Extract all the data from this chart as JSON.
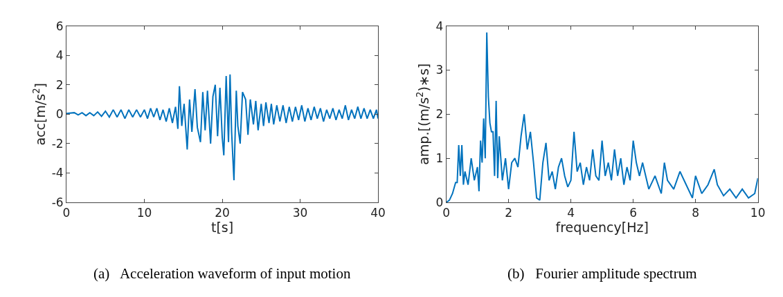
{
  "chart_data": [
    {
      "type": "line",
      "title": "(a)   Acceleration waveform of input motion",
      "xlabel": "t[s]",
      "ylabel": "acc[m/s$^{2}$]",
      "xlim": [
        0,
        40
      ],
      "ylim": [
        -6,
        6
      ],
      "xticks": [
        0,
        10,
        20,
        30,
        40
      ],
      "yticks": [
        -6,
        -4,
        -2,
        0,
        2,
        4,
        6
      ],
      "legend": false,
      "marker": "none",
      "line_style": "solid",
      "series": [
        {
          "color": "#0072bd",
          "x": [
            0,
            1,
            1.5,
            2,
            2.5,
            3,
            3.5,
            4,
            4.5,
            5,
            5.5,
            6,
            6.5,
            7,
            7.5,
            8,
            8.5,
            9,
            9.5,
            10,
            10.4,
            10.8,
            11.2,
            11.6,
            12,
            12.4,
            12.8,
            13.2,
            13.6,
            14,
            14.3,
            14.5,
            14.8,
            15.1,
            15.5,
            15.8,
            16.1,
            16.5,
            16.8,
            17.2,
            17.5,
            17.8,
            18.1,
            18.5,
            18.8,
            19.1,
            19.4,
            19.7,
            20,
            20.2,
            20.5,
            20.8,
            21,
            21.2,
            21.5,
            21.8,
            22,
            22.3,
            22.6,
            23,
            23.3,
            23.6,
            24,
            24.3,
            24.6,
            25,
            25.3,
            25.6,
            26,
            26.3,
            26.6,
            27,
            27.4,
            27.8,
            28.2,
            28.6,
            29,
            29.4,
            29.8,
            30.2,
            30.6,
            31,
            31.4,
            31.8,
            32.2,
            32.6,
            33,
            33.4,
            33.8,
            34.2,
            34.6,
            35,
            35.4,
            35.8,
            36.2,
            36.6,
            37,
            37.4,
            37.8,
            38.2,
            38.6,
            39,
            39.4,
            39.8,
            40
          ],
          "values": [
            0.05,
            0.1,
            -0.05,
            0.1,
            -0.1,
            0.1,
            -0.1,
            0.15,
            -0.15,
            0.2,
            -0.2,
            0.3,
            -0.2,
            0.3,
            -0.3,
            0.3,
            -0.2,
            0.3,
            -0.2,
            0.3,
            -0.3,
            0.4,
            -0.2,
            0.4,
            -0.4,
            0.3,
            -0.5,
            0.4,
            -0.6,
            0.5,
            -1.0,
            1.9,
            -0.8,
            0.7,
            -2.4,
            1.0,
            -1.2,
            1.7,
            -0.9,
            -1.9,
            1.5,
            -1.1,
            1.6,
            -2.0,
            1.2,
            2.0,
            -1.5,
            1.8,
            -1.6,
            -2.8,
            2.6,
            -1.9,
            2.7,
            -1.2,
            -4.5,
            1.6,
            -0.8,
            -2.0,
            1.5,
            1.0,
            -1.4,
            1.0,
            -0.7,
            0.9,
            -1.1,
            0.7,
            -0.8,
            0.8,
            -0.6,
            0.7,
            -0.7,
            0.6,
            -0.5,
            0.6,
            -0.6,
            0.5,
            -0.5,
            0.5,
            -0.4,
            0.6,
            -0.5,
            0.4,
            -0.4,
            0.5,
            -0.3,
            0.4,
            -0.5,
            0.3,
            -0.3,
            0.4,
            -0.4,
            0.3,
            -0.3,
            0.6,
            -0.4,
            0.3,
            -0.3,
            0.5,
            -0.3,
            0.4,
            -0.3,
            0.3,
            -0.3,
            0.3,
            -0.3
          ]
        }
      ]
    },
    {
      "type": "line",
      "title": "(b)   Fourier amplitude spectrum",
      "xlabel": "frequency[Hz]",
      "ylabel": "amp.[(m/s$^{2}$)∗s]",
      "xlim": [
        0,
        10
      ],
      "ylim": [
        0,
        4
      ],
      "xticks": [
        0,
        2,
        4,
        6,
        8,
        10
      ],
      "yticks": [
        0,
        1,
        2,
        3,
        4
      ],
      "legend": false,
      "marker": "none",
      "line_style": "solid",
      "series": [
        {
          "color": "#0072bd",
          "x": [
            0,
            0.1,
            0.2,
            0.3,
            0.35,
            0.4,
            0.45,
            0.5,
            0.55,
            0.6,
            0.7,
            0.8,
            0.9,
            1.0,
            1.05,
            1.1,
            1.15,
            1.2,
            1.25,
            1.3,
            1.35,
            1.4,
            1.45,
            1.5,
            1.55,
            1.6,
            1.65,
            1.7,
            1.8,
            1.9,
            2.0,
            2.1,
            2.2,
            2.3,
            2.4,
            2.5,
            2.6,
            2.7,
            2.8,
            2.9,
            3.0,
            3.1,
            3.2,
            3.3,
            3.4,
            3.5,
            3.6,
            3.7,
            3.8,
            3.9,
            4.0,
            4.1,
            4.2,
            4.3,
            4.4,
            4.5,
            4.6,
            4.7,
            4.8,
            4.9,
            5.0,
            5.1,
            5.2,
            5.3,
            5.4,
            5.5,
            5.6,
            5.7,
            5.8,
            5.9,
            6.0,
            6.1,
            6.2,
            6.3,
            6.5,
            6.7,
            6.9,
            7.0,
            7.1,
            7.3,
            7.5,
            7.7,
            7.9,
            8.0,
            8.2,
            8.4,
            8.6,
            8.7,
            8.9,
            9.1,
            9.3,
            9.5,
            9.7,
            9.9,
            10
          ],
          "values": [
            0,
            0.05,
            0.2,
            0.45,
            0.45,
            1.3,
            0.6,
            1.3,
            0.4,
            0.7,
            0.4,
            1.0,
            0.5,
            0.8,
            0.25,
            1.4,
            0.9,
            1.9,
            1.0,
            3.85,
            2.4,
            1.8,
            1.6,
            1.6,
            0.6,
            2.3,
            0.55,
            1.5,
            0.5,
            1.0,
            0.3,
            0.9,
            1.0,
            0.8,
            1.5,
            2.0,
            1.2,
            1.6,
            0.9,
            0.1,
            0.05,
            0.9,
            1.35,
            0.5,
            0.7,
            0.3,
            0.8,
            1.0,
            0.6,
            0.35,
            0.5,
            1.6,
            0.7,
            0.9,
            0.4,
            0.8,
            0.5,
            1.2,
            0.6,
            0.5,
            1.4,
            0.6,
            0.9,
            0.5,
            1.2,
            0.6,
            1.0,
            0.4,
            0.8,
            0.5,
            1.4,
            0.9,
            0.6,
            0.9,
            0.3,
            0.6,
            0.2,
            0.9,
            0.5,
            0.3,
            0.7,
            0.4,
            0.1,
            0.6,
            0.2,
            0.4,
            0.75,
            0.4,
            0.15,
            0.3,
            0.1,
            0.3,
            0.1,
            0.2,
            0.55
          ]
        }
      ]
    }
  ]
}
